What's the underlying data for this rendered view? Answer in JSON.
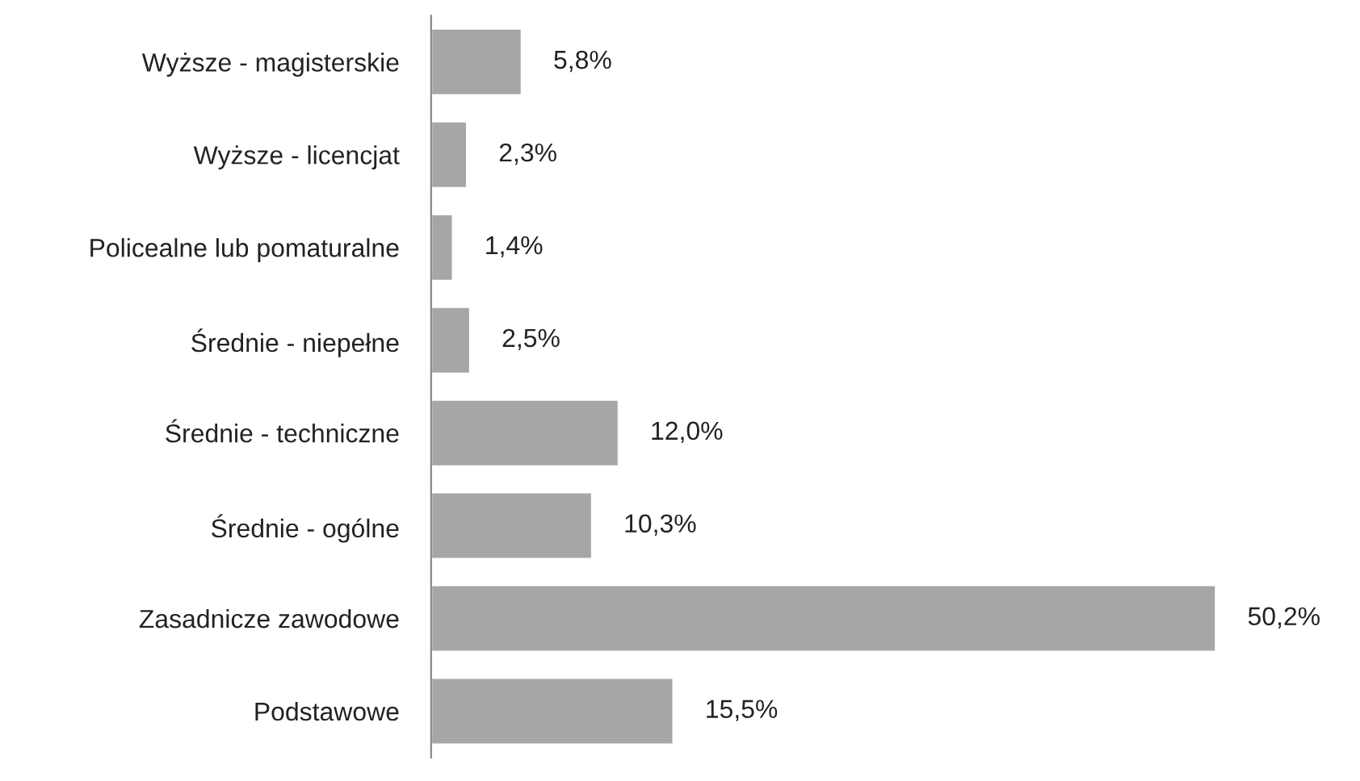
{
  "chart_data": {
    "type": "bar",
    "orientation": "horizontal",
    "categories": [
      "Wyższe - magisterskie",
      "Wyższe - licencjat",
      "Policealne lub pomaturalne",
      "Średnie - niepełne",
      "Średnie - techniczne",
      "Średnie - ogólne",
      "Zasadnicze zawodowe",
      "Podstawowe"
    ],
    "values": [
      5.8,
      2.3,
      1.4,
      2.5,
      12.0,
      10.3,
      50.2,
      15.5
    ],
    "value_labels": [
      "5,8%",
      "2,3%",
      "1,4%",
      "2,5%",
      "12,0%",
      "10,3%",
      "50,2%",
      "15,5%"
    ],
    "color": "#a6a6a6",
    "grid": false,
    "legend": false
  }
}
